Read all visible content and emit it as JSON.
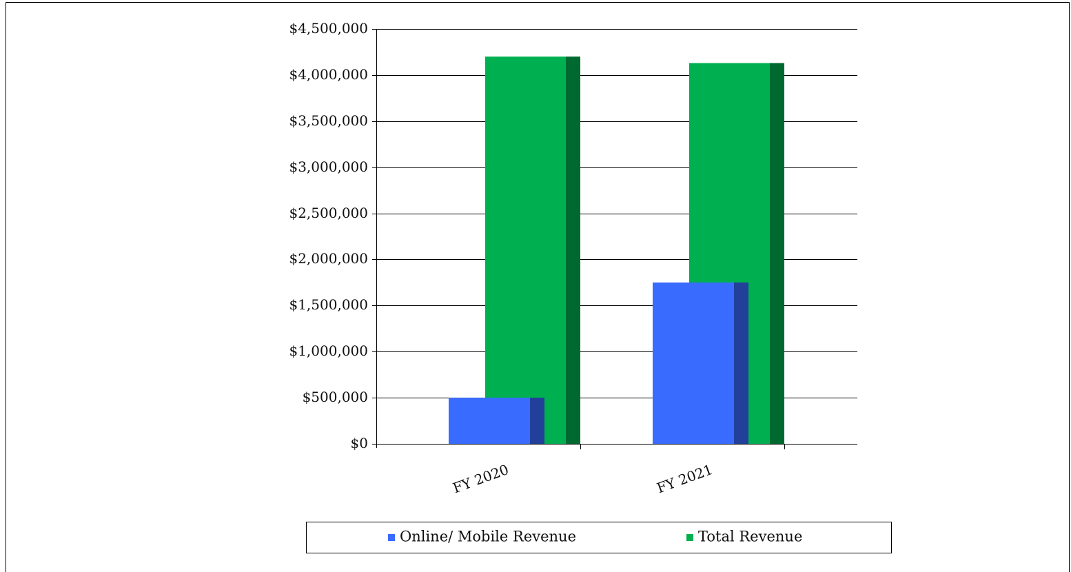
{
  "chart_data": {
    "type": "bar",
    "categories": [
      "FY 2020",
      "FY 2021"
    ],
    "series": [
      {
        "name": "Online/ Mobile Revenue",
        "color": "#3a6bff",
        "values": [
          500000,
          1750000
        ]
      },
      {
        "name": "Total Revenue",
        "color": "#00b050",
        "values": [
          4200000,
          4130000
        ]
      }
    ],
    "ylim": [
      0,
      4500000
    ],
    "yticks": [
      {
        "value": 0,
        "label": "$0"
      },
      {
        "value": 500000,
        "label": "$500,000"
      },
      {
        "value": 1000000,
        "label": "$1,000,000"
      },
      {
        "value": 1500000,
        "label": "$1,500,000"
      },
      {
        "value": 2000000,
        "label": "$2,000,000"
      },
      {
        "value": 2500000,
        "label": "$2,500,000"
      },
      {
        "value": 3000000,
        "label": "$3,000,000"
      },
      {
        "value": 3500000,
        "label": "$3,500,000"
      },
      {
        "value": 4000000,
        "label": "$4,000,000"
      },
      {
        "value": 4500000,
        "label": "$4,500,000"
      }
    ],
    "grid": true,
    "legend": "bottom"
  }
}
